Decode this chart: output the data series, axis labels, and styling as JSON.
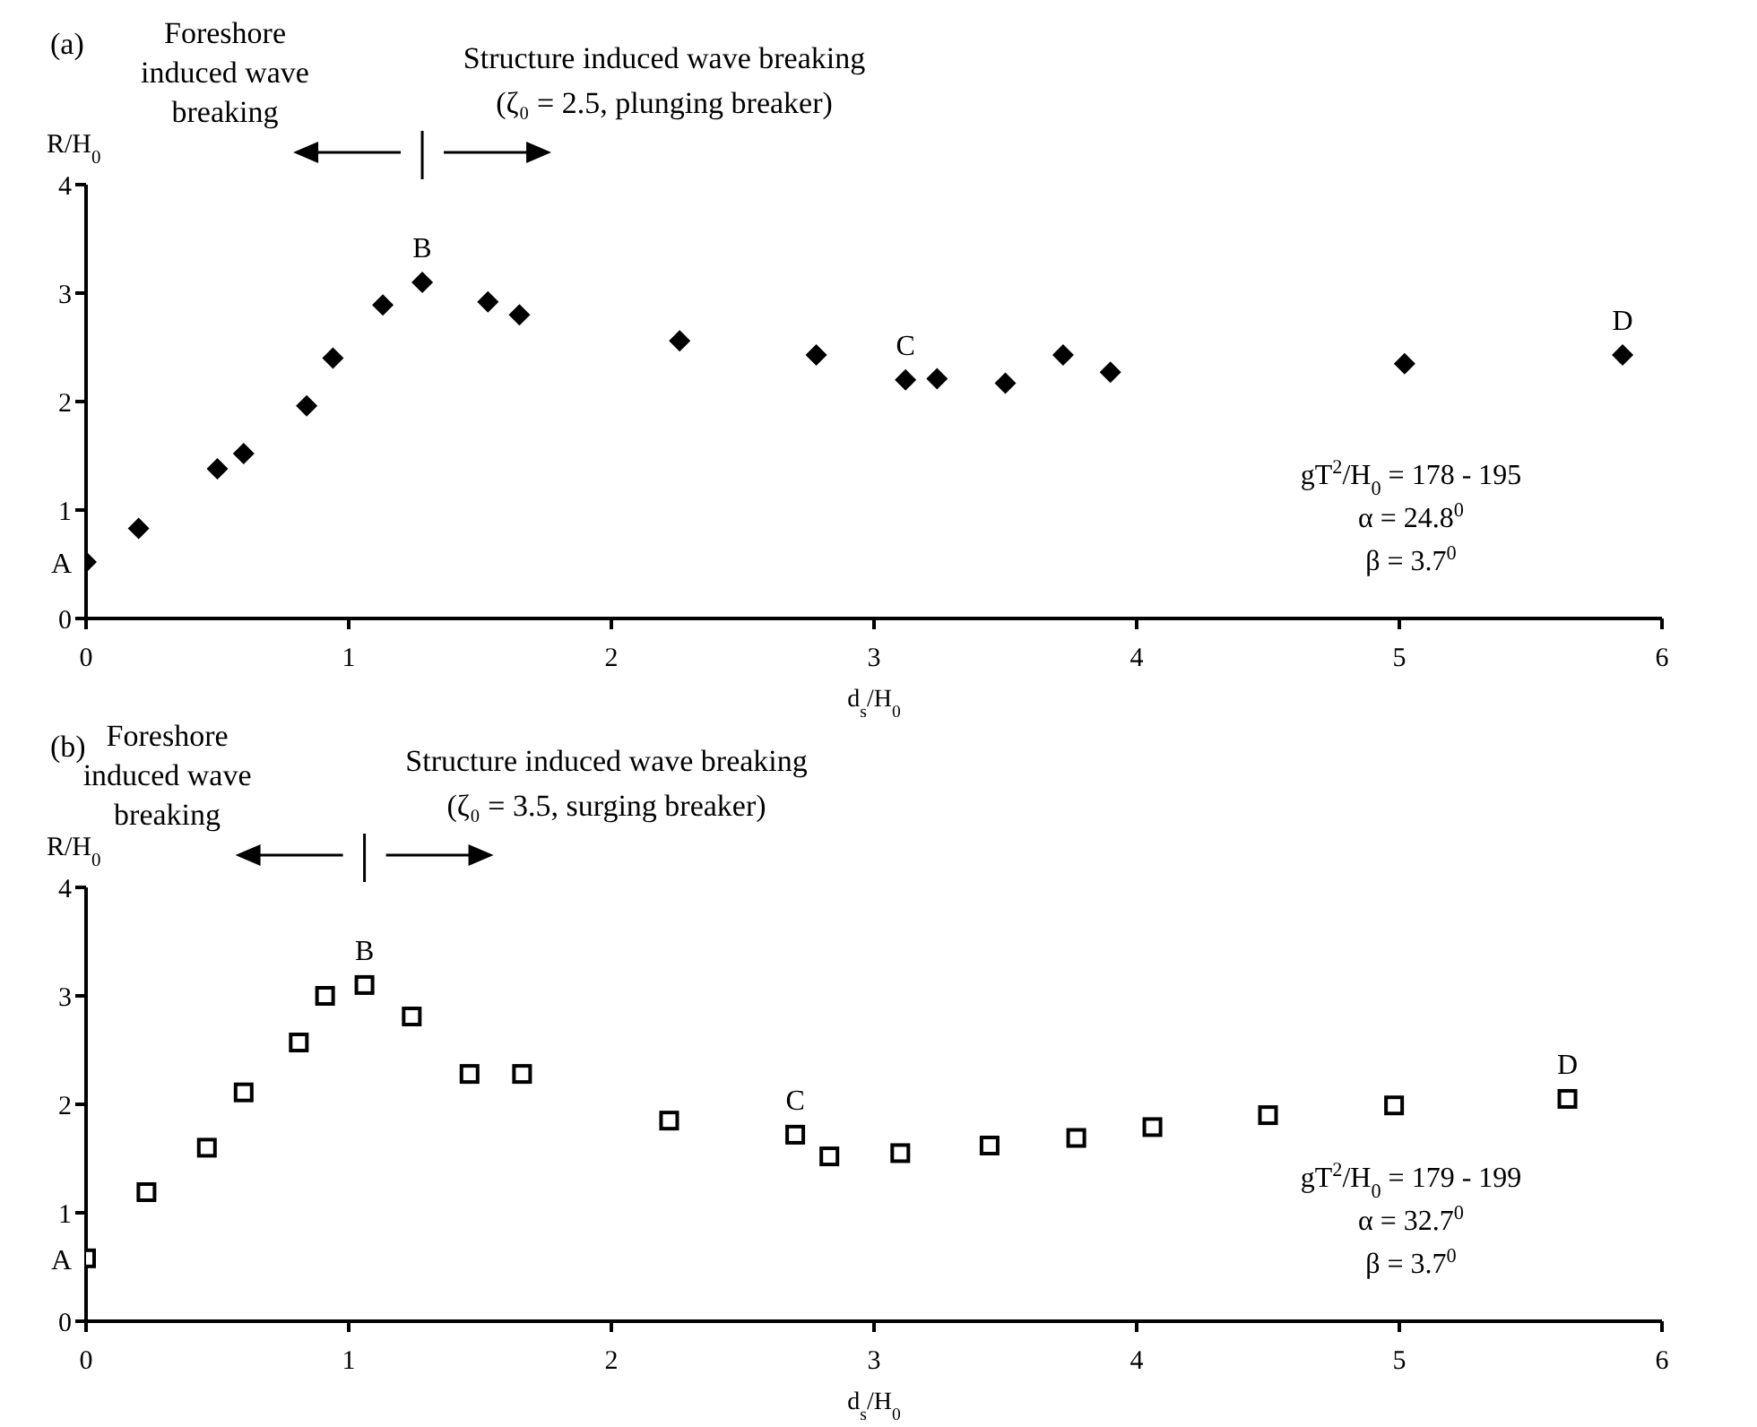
{
  "chart_data": [
    {
      "type": "scatter",
      "xlabel": "d$_{s}$/H$_{0}$",
      "ylabel": "R/H$_{0}$",
      "marker": "diamond",
      "legend": false,
      "grid": false,
      "xlim": [
        0,
        6
      ],
      "xticks": [
        0,
        1,
        2,
        3,
        4,
        5,
        6
      ],
      "ylim": [
        0,
        4
      ],
      "yticks": [
        0,
        1,
        2,
        3,
        4
      ],
      "series": [
        {
          "color": "#000000",
          "x": [
            0,
            0.2,
            0.5,
            0.6,
            0.84,
            0.94,
            1.13,
            1.28,
            1.53,
            1.65,
            2.26,
            2.78,
            3.12,
            3.24,
            3.5,
            3.72,
            3.9,
            5.02,
            5.85
          ],
          "values": [
            0.52,
            0.83,
            1.38,
            1.52,
            1.96,
            2.4,
            2.89,
            3.1,
            2.92,
            2.8,
            2.56,
            2.43,
            2.2,
            2.21,
            2.17,
            2.43,
            2.27,
            2.35,
            2.43
          ]
        }
      ],
      "annotations": [
        "(a)",
        "Foreshore induced wave breaking",
        "Structure induced wave breaking (ζ₀ = 2.5, plunging breaker)",
        "gT$^{2}$/H$_{0}$ = 178 - 195",
        "α = 24.8$^{0}$",
        "β = 3.7$^{0}$",
        {
          "text": "A",
          "x": 0,
          "y": 0.52
        },
        {
          "text": "B",
          "x": 1.28,
          "y": 3.1
        },
        {
          "text": "C",
          "x": 3.12,
          "y": 2.2
        },
        {
          "text": "D",
          "x": 5.85,
          "y": 2.43
        }
      ]
    },
    {
      "type": "scatter",
      "xlabel": "d$_{s}$/H$_{0}$",
      "ylabel": "R/H$_{0}$",
      "marker": "square",
      "legend": false,
      "grid": false,
      "xlim": [
        0,
        6
      ],
      "xticks": [
        0,
        1,
        2,
        3,
        4,
        5,
        6
      ],
      "ylim": [
        0,
        4
      ],
      "yticks": [
        0,
        1,
        2,
        3,
        4
      ],
      "series": [
        {
          "color": "#000000",
          "x": [
            0,
            0.23,
            0.46,
            0.6,
            0.81,
            0.91,
            1.06,
            1.24,
            1.46,
            1.66,
            2.22,
            2.7,
            2.83,
            3.1,
            3.44,
            3.77,
            4.06,
            4.5,
            4.98,
            5.64
          ],
          "values": [
            0.58,
            1.19,
            1.6,
            2.11,
            2.57,
            3.0,
            3.1,
            2.81,
            2.28,
            2.28,
            1.85,
            1.72,
            1.52,
            1.55,
            1.62,
            1.69,
            1.79,
            1.9,
            1.99,
            2.05
          ]
        }
      ],
      "annotations": [
        "(b)",
        "Foreshore induced wave breaking",
        "Structure induced wave breaking (ζ₀ = 3.5, surging breaker)",
        "gT$^{2}$/H$_{0}$ = 179 - 199",
        "α = 32.7$^{0}$",
        "β = 3.7$^{0}$",
        {
          "text": "A",
          "x": 0,
          "y": 0.58
        },
        {
          "text": "B",
          "x": 1.06,
          "y": 3.1
        },
        {
          "text": "C",
          "x": 2.7,
          "y": 1.72
        },
        {
          "text": "D",
          "x": 5.64,
          "y": 2.05
        }
      ]
    }
  ]
}
